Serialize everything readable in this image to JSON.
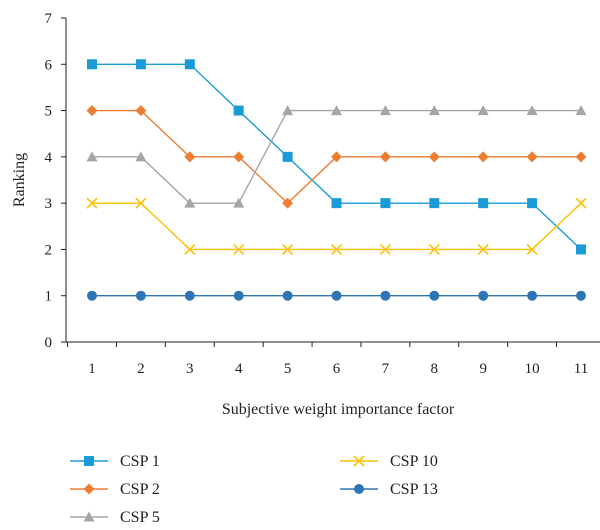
{
  "chart_data": {
    "type": "line",
    "x": [
      1,
      2,
      3,
      4,
      5,
      6,
      7,
      8,
      9,
      10,
      11
    ],
    "xlabel": "Subjective weight importance factor",
    "ylabel": "Ranking",
    "xlim": [
      1,
      11
    ],
    "ylim": [
      0,
      7
    ],
    "y_ticks": [
      0,
      1,
      2,
      3,
      4,
      5,
      6,
      7
    ],
    "x_ticks": [
      1,
      2,
      3,
      4,
      5,
      6,
      7,
      8,
      9,
      10,
      11
    ],
    "grid": false,
    "legend_position": "bottom",
    "series": [
      {
        "name": "CSP 1",
        "color": "#1a9bd7",
        "marker": "square",
        "values": [
          6,
          6,
          6,
          5,
          4,
          3,
          3,
          3,
          3,
          3,
          2
        ]
      },
      {
        "name": "CSP 2",
        "color": "#ed7d31",
        "marker": "diamond",
        "values": [
          5,
          5,
          4,
          4,
          3,
          4,
          4,
          4,
          4,
          4,
          4
        ]
      },
      {
        "name": "CSP 5",
        "color": "#a5a5a5",
        "marker": "triangle",
        "values": [
          4,
          4,
          3,
          3,
          5,
          5,
          5,
          5,
          5,
          5,
          5
        ]
      },
      {
        "name": "CSP 10",
        "color": "#ffc000",
        "marker": "x",
        "values": [
          3,
          3,
          2,
          2,
          2,
          2,
          2,
          2,
          2,
          2,
          3
        ]
      },
      {
        "name": "CSP 13",
        "color": "#2e75b6",
        "marker": "circle",
        "values": [
          1,
          1,
          1,
          1,
          1,
          1,
          1,
          1,
          1,
          1,
          1
        ]
      }
    ]
  }
}
